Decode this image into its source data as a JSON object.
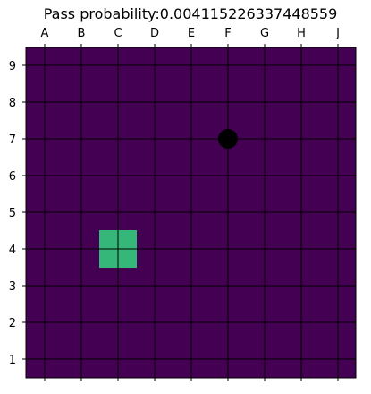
{
  "title": "Pass probability:0.004115226337448559",
  "columns": [
    "A",
    "B",
    "C",
    "D",
    "E",
    "F",
    "G",
    "H",
    "J"
  ],
  "rows": [
    "1",
    "2",
    "3",
    "4",
    "5",
    "6",
    "7",
    "8",
    "9"
  ],
  "colors": {
    "board": "#440154",
    "grid": "#000000",
    "highlight": "#35b779",
    "stone": "#000000"
  },
  "stones": [
    {
      "col": "F",
      "row": "7",
      "color": "black"
    }
  ],
  "highlight_cells": [
    {
      "col": "C",
      "row": "4"
    }
  ]
}
